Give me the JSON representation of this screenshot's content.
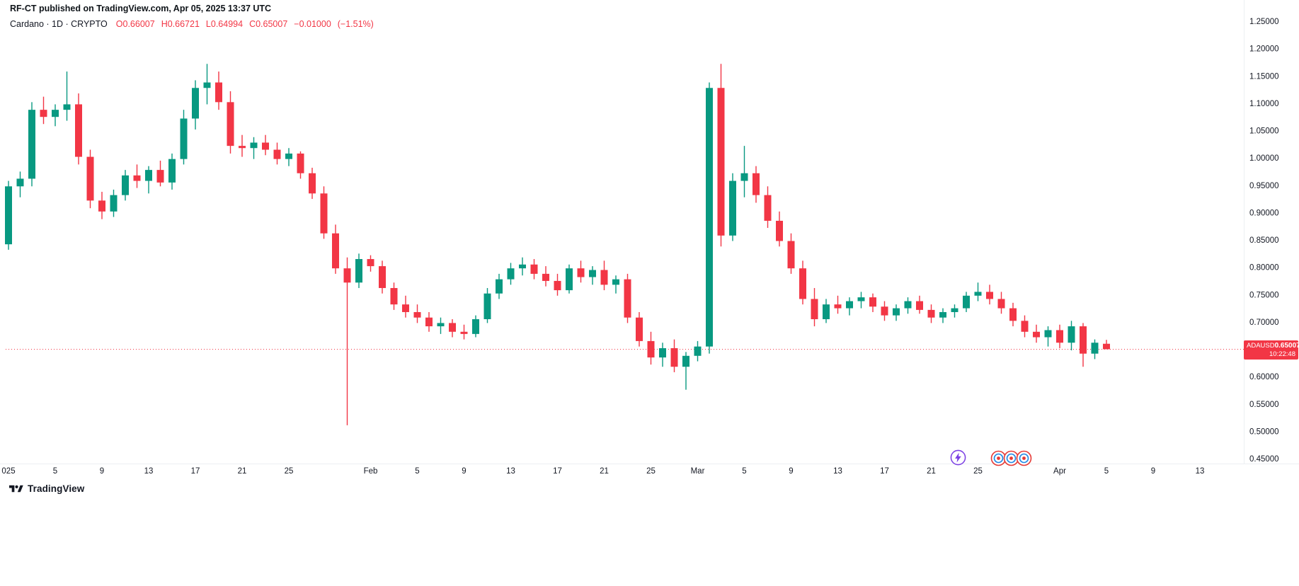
{
  "header": {
    "publish_line": "RF-CT published on TradingView.com, Apr 05, 2025 13:37 UTC",
    "symbol_summary": "Cardano · 1D · CRYPTO",
    "ohlc": {
      "open": "O0.66007",
      "high": "H0.66721",
      "low": "L0.64994",
      "close": "C0.65007",
      "change": "−0.01000",
      "change_pct": "(−1.51%)"
    }
  },
  "price_tag": {
    "symbol": "ADAUSD",
    "price": "0.65007",
    "countdown": "10:22:48"
  },
  "footer": {
    "logo_text": "TradingView"
  },
  "icons": {
    "logo": "tradingview-logo-icon",
    "boost": "lightning-circle-icon",
    "reactions": "emoji-reaction-icon"
  },
  "colors": {
    "up": "#089981",
    "down": "#F23645",
    "text": "#131722",
    "axis_text": "#131722",
    "background": "#ffffff",
    "separator": "#eceff2",
    "tag_background": "#F23645"
  },
  "chart_data": {
    "type": "candlestick",
    "symbol": "ADAUSD",
    "name": "Cardano",
    "interval": "1D",
    "exchange": "CRYPTO",
    "title": "Cardano · 1D · CRYPTO",
    "current_price": 0.65007,
    "change": "−0.01000",
    "change_pct": "−1.51%",
    "up_color": "#089981",
    "down_color": "#F23645",
    "grid": false,
    "y_axis": {
      "visible_range": [
        0.44,
        1.29
      ],
      "tick_step": 0.05,
      "ticks": [
        {
          "value": 1.25,
          "label": "1.25000"
        },
        {
          "value": 1.2,
          "label": "1.20000"
        },
        {
          "value": 1.15,
          "label": "1.15000"
        },
        {
          "value": 1.1,
          "label": "1.10000"
        },
        {
          "value": 1.05,
          "label": "1.05000"
        },
        {
          "value": 1.0,
          "label": "1.00000"
        },
        {
          "value": 0.95,
          "label": "0.95000"
        },
        {
          "value": 0.9,
          "label": "0.90000"
        },
        {
          "value": 0.85,
          "label": "0.85000"
        },
        {
          "value": 0.8,
          "label": "0.80000"
        },
        {
          "value": 0.75,
          "label": "0.75000"
        },
        {
          "value": 0.7,
          "label": "0.70000"
        },
        {
          "value": 0.65,
          "label": "0.65000"
        },
        {
          "value": 0.6,
          "label": "0.60000"
        },
        {
          "value": 0.55,
          "label": "0.55000"
        },
        {
          "value": 0.5,
          "label": "0.50000"
        },
        {
          "value": 0.45,
          "label": "0.45000"
        }
      ]
    },
    "x_ticks": [
      {
        "index": 0,
        "label": "025"
      },
      {
        "index": 4,
        "label": "5"
      },
      {
        "index": 8,
        "label": "9"
      },
      {
        "index": 12,
        "label": "13"
      },
      {
        "index": 16,
        "label": "17"
      },
      {
        "index": 20,
        "label": "21"
      },
      {
        "index": 24,
        "label": "25"
      },
      {
        "index": 31,
        "label": "Feb"
      },
      {
        "index": 35,
        "label": "5"
      },
      {
        "index": 39,
        "label": "9"
      },
      {
        "index": 43,
        "label": "13"
      },
      {
        "index": 47,
        "label": "17"
      },
      {
        "index": 51,
        "label": "21"
      },
      {
        "index": 55,
        "label": "25"
      },
      {
        "index": 59,
        "label": "Mar"
      },
      {
        "index": 63,
        "label": "5"
      },
      {
        "index": 67,
        "label": "9"
      },
      {
        "index": 71,
        "label": "13"
      },
      {
        "index": 75,
        "label": "17"
      },
      {
        "index": 79,
        "label": "21"
      },
      {
        "index": 83,
        "label": "25"
      },
      {
        "index": 90,
        "label": "Apr"
      },
      {
        "index": 94,
        "label": "5"
      },
      {
        "index": 98,
        "label": "9"
      },
      {
        "index": 102,
        "label": "13"
      }
    ],
    "candles": [
      {
        "d": "2025-01-01",
        "o": 0.842,
        "h": 0.958,
        "l": 0.832,
        "c": 0.948
      },
      {
        "d": "2025-01-02",
        "o": 0.948,
        "h": 0.975,
        "l": 0.928,
        "c": 0.962
      },
      {
        "d": "2025-01-03",
        "o": 0.962,
        "h": 1.102,
        "l": 0.948,
        "c": 1.088
      },
      {
        "d": "2025-01-04",
        "o": 1.088,
        "h": 1.112,
        "l": 1.062,
        "c": 1.075
      },
      {
        "d": "2025-01-05",
        "o": 1.075,
        "h": 1.098,
        "l": 1.058,
        "c": 1.088
      },
      {
        "d": "2025-01-06",
        "o": 1.088,
        "h": 1.158,
        "l": 1.068,
        "c": 1.098
      },
      {
        "d": "2025-01-07",
        "o": 1.098,
        "h": 1.118,
        "l": 0.988,
        "c": 1.002
      },
      {
        "d": "2025-01-08",
        "o": 1.002,
        "h": 1.015,
        "l": 0.908,
        "c": 0.922
      },
      {
        "d": "2025-01-09",
        "o": 0.922,
        "h": 0.938,
        "l": 0.888,
        "c": 0.902
      },
      {
        "d": "2025-01-10",
        "o": 0.902,
        "h": 0.942,
        "l": 0.892,
        "c": 0.932
      },
      {
        "d": "2025-01-11",
        "o": 0.932,
        "h": 0.978,
        "l": 0.922,
        "c": 0.968
      },
      {
        "d": "2025-01-12",
        "o": 0.968,
        "h": 0.988,
        "l": 0.945,
        "c": 0.958
      },
      {
        "d": "2025-01-13",
        "o": 0.958,
        "h": 0.985,
        "l": 0.935,
        "c": 0.978
      },
      {
        "d": "2025-01-14",
        "o": 0.978,
        "h": 0.995,
        "l": 0.948,
        "c": 0.955
      },
      {
        "d": "2025-01-15",
        "o": 0.955,
        "h": 1.008,
        "l": 0.942,
        "c": 0.998
      },
      {
        "d": "2025-01-16",
        "o": 0.998,
        "h": 1.088,
        "l": 0.988,
        "c": 1.072
      },
      {
        "d": "2025-01-17",
        "o": 1.072,
        "h": 1.142,
        "l": 1.052,
        "c": 1.128
      },
      {
        "d": "2025-01-18",
        "o": 1.128,
        "h": 1.172,
        "l": 1.098,
        "c": 1.138
      },
      {
        "d": "2025-01-19",
        "o": 1.138,
        "h": 1.158,
        "l": 1.088,
        "c": 1.102
      },
      {
        "d": "2025-01-20",
        "o": 1.102,
        "h": 1.122,
        "l": 1.008,
        "c": 1.022
      },
      {
        "d": "2025-01-21",
        "o": 1.022,
        "h": 1.042,
        "l": 1.002,
        "c": 1.018
      },
      {
        "d": "2025-01-22",
        "o": 1.018,
        "h": 1.038,
        "l": 0.998,
        "c": 1.028
      },
      {
        "d": "2025-01-23",
        "o": 1.028,
        "h": 1.042,
        "l": 1.005,
        "c": 1.015
      },
      {
        "d": "2025-01-24",
        "o": 1.015,
        "h": 1.028,
        "l": 0.988,
        "c": 0.998
      },
      {
        "d": "2025-01-25",
        "o": 0.998,
        "h": 1.018,
        "l": 0.985,
        "c": 1.008
      },
      {
        "d": "2025-01-26",
        "o": 1.008,
        "h": 1.012,
        "l": 0.962,
        "c": 0.972
      },
      {
        "d": "2025-01-27",
        "o": 0.972,
        "h": 0.982,
        "l": 0.925,
        "c": 0.935
      },
      {
        "d": "2025-01-28",
        "o": 0.935,
        "h": 0.948,
        "l": 0.852,
        "c": 0.862
      },
      {
        "d": "2025-01-29",
        "o": 0.862,
        "h": 0.878,
        "l": 0.788,
        "c": 0.798
      },
      {
        "d": "2025-01-30",
        "o": 0.798,
        "h": 0.818,
        "l": 0.511,
        "c": 0.772
      },
      {
        "d": "2025-01-31",
        "o": 0.772,
        "h": 0.825,
        "l": 0.762,
        "c": 0.815
      },
      {
        "d": "2025-02-01",
        "o": 0.815,
        "h": 0.822,
        "l": 0.792,
        "c": 0.802
      },
      {
        "d": "2025-02-02",
        "o": 0.802,
        "h": 0.812,
        "l": 0.752,
        "c": 0.762
      },
      {
        "d": "2025-02-03",
        "o": 0.762,
        "h": 0.772,
        "l": 0.722,
        "c": 0.732
      },
      {
        "d": "2025-02-04",
        "o": 0.732,
        "h": 0.748,
        "l": 0.708,
        "c": 0.718
      },
      {
        "d": "2025-02-05",
        "o": 0.718,
        "h": 0.732,
        "l": 0.698,
        "c": 0.708
      },
      {
        "d": "2025-02-06",
        "o": 0.708,
        "h": 0.718,
        "l": 0.682,
        "c": 0.692
      },
      {
        "d": "2025-02-07",
        "o": 0.692,
        "h": 0.708,
        "l": 0.678,
        "c": 0.698
      },
      {
        "d": "2025-02-08",
        "o": 0.698,
        "h": 0.705,
        "l": 0.672,
        "c": 0.682
      },
      {
        "d": "2025-02-09",
        "o": 0.682,
        "h": 0.695,
        "l": 0.668,
        "c": 0.678
      },
      {
        "d": "2025-02-10",
        "o": 0.678,
        "h": 0.712,
        "l": 0.672,
        "c": 0.705
      },
      {
        "d": "2025-02-11",
        "o": 0.705,
        "h": 0.762,
        "l": 0.698,
        "c": 0.752
      },
      {
        "d": "2025-02-12",
        "o": 0.752,
        "h": 0.788,
        "l": 0.742,
        "c": 0.778
      },
      {
        "d": "2025-02-13",
        "o": 0.778,
        "h": 0.808,
        "l": 0.768,
        "c": 0.798
      },
      {
        "d": "2025-02-14",
        "o": 0.798,
        "h": 0.818,
        "l": 0.785,
        "c": 0.805
      },
      {
        "d": "2025-02-15",
        "o": 0.805,
        "h": 0.815,
        "l": 0.778,
        "c": 0.788
      },
      {
        "d": "2025-02-16",
        "o": 0.788,
        "h": 0.802,
        "l": 0.765,
        "c": 0.775
      },
      {
        "d": "2025-02-17",
        "o": 0.775,
        "h": 0.788,
        "l": 0.748,
        "c": 0.758
      },
      {
        "d": "2025-02-18",
        "o": 0.758,
        "h": 0.805,
        "l": 0.752,
        "c": 0.798
      },
      {
        "d": "2025-02-19",
        "o": 0.798,
        "h": 0.812,
        "l": 0.772,
        "c": 0.782
      },
      {
        "d": "2025-02-20",
        "o": 0.782,
        "h": 0.802,
        "l": 0.768,
        "c": 0.795
      },
      {
        "d": "2025-02-21",
        "o": 0.795,
        "h": 0.812,
        "l": 0.758,
        "c": 0.768
      },
      {
        "d": "2025-02-22",
        "o": 0.768,
        "h": 0.785,
        "l": 0.752,
        "c": 0.778
      },
      {
        "d": "2025-02-23",
        "o": 0.778,
        "h": 0.788,
        "l": 0.698,
        "c": 0.708
      },
      {
        "d": "2025-02-24",
        "o": 0.708,
        "h": 0.718,
        "l": 0.655,
        "c": 0.665
      },
      {
        "d": "2025-02-25",
        "o": 0.665,
        "h": 0.682,
        "l": 0.622,
        "c": 0.635
      },
      {
        "d": "2025-02-26",
        "o": 0.635,
        "h": 0.662,
        "l": 0.618,
        "c": 0.652
      },
      {
        "d": "2025-02-27",
        "o": 0.652,
        "h": 0.668,
        "l": 0.608,
        "c": 0.618
      },
      {
        "d": "2025-02-28",
        "o": 0.618,
        "h": 0.645,
        "l": 0.576,
        "c": 0.638
      },
      {
        "d": "2025-03-01",
        "o": 0.638,
        "h": 0.665,
        "l": 0.628,
        "c": 0.655
      },
      {
        "d": "2025-03-02",
        "o": 0.655,
        "h": 1.138,
        "l": 0.642,
        "c": 1.128
      },
      {
        "d": "2025-03-03",
        "o": 1.128,
        "h": 1.172,
        "l": 0.838,
        "c": 0.858
      },
      {
        "d": "2025-03-04",
        "o": 0.858,
        "h": 0.972,
        "l": 0.848,
        "c": 0.958
      },
      {
        "d": "2025-03-05",
        "o": 0.958,
        "h": 1.022,
        "l": 0.928,
        "c": 0.972
      },
      {
        "d": "2025-03-06",
        "o": 0.972,
        "h": 0.985,
        "l": 0.918,
        "c": 0.932
      },
      {
        "d": "2025-03-07",
        "o": 0.932,
        "h": 0.948,
        "l": 0.872,
        "c": 0.885
      },
      {
        "d": "2025-03-08",
        "o": 0.885,
        "h": 0.902,
        "l": 0.838,
        "c": 0.848
      },
      {
        "d": "2025-03-09",
        "o": 0.848,
        "h": 0.862,
        "l": 0.788,
        "c": 0.798
      },
      {
        "d": "2025-03-10",
        "o": 0.798,
        "h": 0.812,
        "l": 0.732,
        "c": 0.742
      },
      {
        "d": "2025-03-11",
        "o": 0.742,
        "h": 0.762,
        "l": 0.692,
        "c": 0.705
      },
      {
        "d": "2025-03-12",
        "o": 0.705,
        "h": 0.742,
        "l": 0.698,
        "c": 0.732
      },
      {
        "d": "2025-03-13",
        "o": 0.732,
        "h": 0.748,
        "l": 0.715,
        "c": 0.725
      },
      {
        "d": "2025-03-14",
        "o": 0.725,
        "h": 0.745,
        "l": 0.712,
        "c": 0.738
      },
      {
        "d": "2025-03-15",
        "o": 0.738,
        "h": 0.755,
        "l": 0.725,
        "c": 0.745
      },
      {
        "d": "2025-03-16",
        "o": 0.745,
        "h": 0.752,
        "l": 0.718,
        "c": 0.728
      },
      {
        "d": "2025-03-17",
        "o": 0.728,
        "h": 0.738,
        "l": 0.702,
        "c": 0.712
      },
      {
        "d": "2025-03-18",
        "o": 0.712,
        "h": 0.732,
        "l": 0.702,
        "c": 0.725
      },
      {
        "d": "2025-03-19",
        "o": 0.725,
        "h": 0.745,
        "l": 0.715,
        "c": 0.738
      },
      {
        "d": "2025-03-20",
        "o": 0.738,
        "h": 0.748,
        "l": 0.715,
        "c": 0.722
      },
      {
        "d": "2025-03-21",
        "o": 0.722,
        "h": 0.732,
        "l": 0.698,
        "c": 0.708
      },
      {
        "d": "2025-03-22",
        "o": 0.708,
        "h": 0.725,
        "l": 0.698,
        "c": 0.718
      },
      {
        "d": "2025-03-23",
        "o": 0.718,
        "h": 0.732,
        "l": 0.708,
        "c": 0.725
      },
      {
        "d": "2025-03-24",
        "o": 0.725,
        "h": 0.755,
        "l": 0.718,
        "c": 0.748
      },
      {
        "d": "2025-03-25",
        "o": 0.748,
        "h": 0.772,
        "l": 0.738,
        "c": 0.755
      },
      {
        "d": "2025-03-26",
        "o": 0.755,
        "h": 0.768,
        "l": 0.732,
        "c": 0.742
      },
      {
        "d": "2025-03-27",
        "o": 0.742,
        "h": 0.755,
        "l": 0.715,
        "c": 0.725
      },
      {
        "d": "2025-03-28",
        "o": 0.725,
        "h": 0.735,
        "l": 0.692,
        "c": 0.702
      },
      {
        "d": "2025-03-29",
        "o": 0.702,
        "h": 0.712,
        "l": 0.672,
        "c": 0.682
      },
      {
        "d": "2025-03-30",
        "o": 0.682,
        "h": 0.695,
        "l": 0.662,
        "c": 0.672
      },
      {
        "d": "2025-03-31",
        "o": 0.672,
        "h": 0.692,
        "l": 0.655,
        "c": 0.685
      },
      {
        "d": "2025-04-01",
        "o": 0.685,
        "h": 0.695,
        "l": 0.652,
        "c": 0.662
      },
      {
        "d": "2025-04-02",
        "o": 0.662,
        "h": 0.702,
        "l": 0.648,
        "c": 0.692
      },
      {
        "d": "2025-04-03",
        "o": 0.692,
        "h": 0.698,
        "l": 0.618,
        "c": 0.642
      },
      {
        "d": "2025-04-04",
        "o": 0.642,
        "h": 0.668,
        "l": 0.632,
        "c": 0.662
      },
      {
        "d": "2025-04-05",
        "o": 0.66007,
        "h": 0.66721,
        "l": 0.64994,
        "c": 0.65007
      }
    ]
  }
}
